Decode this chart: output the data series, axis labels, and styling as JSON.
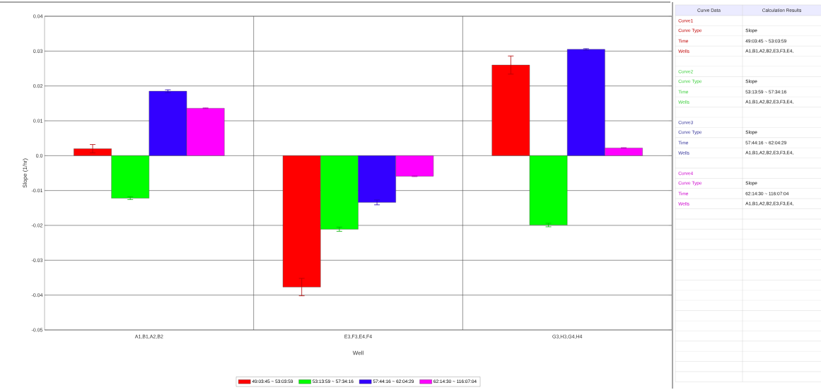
{
  "chart_data": [
    {
      "type": "bar",
      "xlabel": "Well",
      "ylabel": "Slope (1/hr)",
      "categories": [
        "A1,B1,A2,B2",
        "E3,F3,E4,F4",
        "G3,H3,G4,H4"
      ],
      "series": [
        {
          "name": "49:03:45 ~ 53:03:59",
          "color": "#ff0000",
          "values": [
            0.002,
            -0.0377,
            0.026
          ],
          "errors": [
            0.0012,
            0.0025,
            0.0026
          ]
        },
        {
          "name": "53:13:59 ~ 57:34:16",
          "color": "#00ff00",
          "values": [
            -0.0122,
            -0.0211,
            -0.0199
          ],
          "errors": [
            0.0004,
            0.0006,
            0.0005
          ]
        },
        {
          "name": "57:44:16 ~ 62:04:29",
          "color": "#3300ff",
          "values": [
            0.0185,
            -0.0134,
            0.0305
          ],
          "errors": [
            0.0004,
            0.0007,
            0.0002
          ]
        },
        {
          "name": "62:14:30 ~ 116:07:04",
          "color": "#ff00ff",
          "values": [
            0.0136,
            -0.0059,
            0.0022
          ],
          "errors": [
            0.0001,
            0.0001,
            0.0001
          ]
        }
      ],
      "ylim": [
        -0.05,
        0.04
      ],
      "yticks": [
        -0.05,
        -0.04,
        -0.03,
        -0.02,
        -0.01,
        {
          "value": 0,
          "label": "0.0"
        },
        0.01,
        0.02,
        0.03,
        0.04
      ],
      "grid": true,
      "legend": "bottom"
    },
    {
      "type": "other",
      "colors": [
        "#c00000",
        "#33cc33",
        "#333399",
        "#cc00cc"
      ],
      "annotations": [
        "Curve Data",
        "Calculation Results",
        "Curve1",
        "Curve Type",
        "Slope",
        "Time",
        "49:03:45 ~ 53:03:59",
        "Wells",
        "A1,B1,A2,B2,E3,F3,E4,",
        "Curve2",
        "Curve Type",
        "Slope",
        "Time",
        "53:13:59 ~ 57:34:16",
        "Wells",
        "A1,B1,A2,B2,E3,F3,E4,",
        "Curve3",
        "Curve Type",
        "Slope",
        "Time",
        "57:44:16 ~ 62:04:29",
        "Wells",
        "A1,B1,A2,B2,E3,F3,E4,",
        "Curve4",
        "Curve Type",
        "Slope",
        "Time",
        "62:14:30 ~ 116:07:04",
        "Wells",
        "A1,B1,A2,B2,E3,F3,E4,"
      ]
    }
  ]
}
